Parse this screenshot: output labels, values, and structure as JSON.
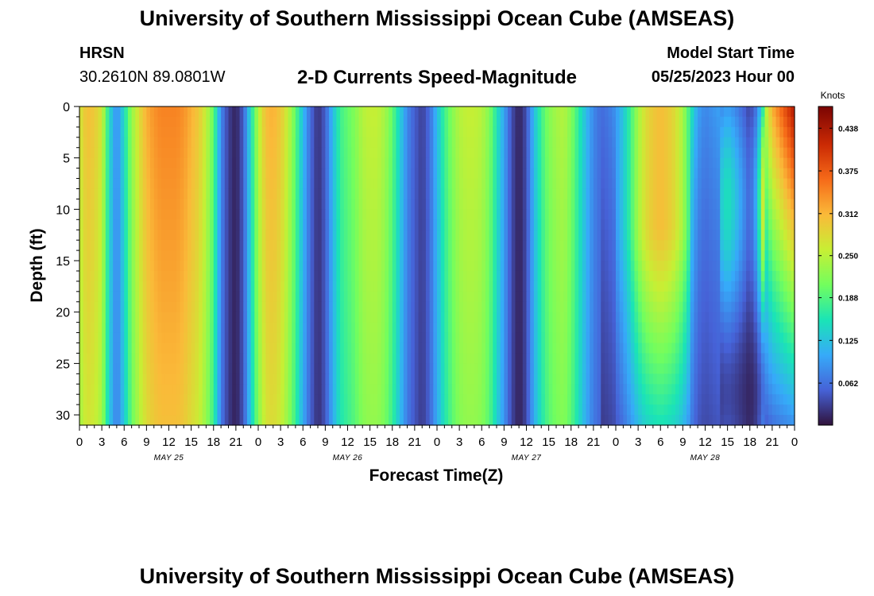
{
  "header": {
    "title": "University of Southern Mississippi Ocean Cube (AMSEAS)",
    "station": "HRSN",
    "coordinates": "30.2610N  89.0801W",
    "plot_title": "2-D Currents Speed-Magnitude",
    "model_start_label": "Model Start Time",
    "model_start_value": "05/25/2023 Hour 00"
  },
  "footer": {
    "title": "University of Southern Mississippi Ocean Cube (AMSEAS)"
  },
  "chart_data": {
    "type": "heatmap",
    "title": "2-D Currents Speed-Magnitude",
    "xlabel": "Forecast Time(Z)",
    "ylabel": "Depth (ft)",
    "x_tick_labels": [
      "0",
      "3",
      "6",
      "9",
      "12",
      "15",
      "18",
      "21",
      "0",
      "3",
      "6",
      "9",
      "12",
      "15",
      "18",
      "21",
      "0",
      "3",
      "6",
      "9",
      "12",
      "15",
      "18",
      "21",
      "0",
      "3",
      "6",
      "9",
      "12",
      "15",
      "18",
      "21",
      "0"
    ],
    "x_hours_range": [
      0,
      96
    ],
    "day_labels": [
      {
        "label": "MAY 25",
        "hour": 12
      },
      {
        "label": "MAY 26",
        "hour": 36
      },
      {
        "label": "MAY 27",
        "hour": 60
      },
      {
        "label": "MAY 28",
        "hour": 84
      }
    ],
    "y_ticks": [
      0,
      5,
      10,
      15,
      20,
      25,
      30
    ],
    "ylim": [
      0,
      31
    ],
    "colorbar": {
      "label": "Knots",
      "range": [
        0,
        0.47
      ],
      "ticks": [
        "0.438",
        "0.375",
        "0.312",
        "0.250",
        "0.188",
        "0.125",
        "0.062"
      ],
      "tick_values": [
        0.438,
        0.375,
        0.312,
        0.25,
        0.188,
        0.125,
        0.062
      ],
      "colors": [
        "#30123b",
        "#4662d7",
        "#36aaf9",
        "#1ae4b6",
        "#72fe5e",
        "#c7ef34",
        "#faba39",
        "#f66b19",
        "#cb2a04",
        "#7a0403"
      ]
    },
    "time_profile_hours": [
      0,
      1,
      2,
      3,
      4,
      5,
      6,
      7,
      8,
      9,
      10,
      11,
      12,
      13,
      14,
      15,
      16,
      17,
      18,
      19,
      20,
      21,
      22,
      23,
      24,
      25,
      26,
      27,
      28,
      29,
      30,
      31,
      32,
      33,
      34,
      35,
      36,
      37,
      38,
      39,
      40,
      41,
      42,
      43,
      44,
      45,
      46,
      47,
      48,
      49,
      50,
      51,
      52,
      53,
      54,
      55,
      56,
      57,
      58,
      59,
      60,
      61,
      62,
      63,
      64,
      65,
      66,
      67,
      68,
      69,
      70,
      71,
      72,
      73,
      74,
      75,
      76,
      77,
      78,
      79,
      80,
      81,
      82,
      83,
      84,
      85,
      86,
      87,
      88,
      89,
      90,
      91,
      92,
      93,
      94,
      95,
      96
    ],
    "surface_speed_knots": [
      0.27,
      0.31,
      0.3,
      0.27,
      0.15,
      0.08,
      0.15,
      0.23,
      0.28,
      0.32,
      0.34,
      0.35,
      0.35,
      0.35,
      0.34,
      0.32,
      0.3,
      0.26,
      0.2,
      0.08,
      0.03,
      0.01,
      0.05,
      0.15,
      0.25,
      0.31,
      0.32,
      0.3,
      0.26,
      0.2,
      0.12,
      0.06,
      0.02,
      0.05,
      0.12,
      0.18,
      0.2,
      0.22,
      0.25,
      0.26,
      0.26,
      0.24,
      0.2,
      0.14,
      0.08,
      0.05,
      0.03,
      0.06,
      0.12,
      0.18,
      0.22,
      0.25,
      0.26,
      0.26,
      0.25,
      0.22,
      0.16,
      0.1,
      0.04,
      0.01,
      0.04,
      0.12,
      0.18,
      0.22,
      0.24,
      0.25,
      0.22,
      0.17,
      0.12,
      0.08,
      0.06,
      0.07,
      0.09,
      0.13,
      0.18,
      0.24,
      0.28,
      0.3,
      0.31,
      0.3,
      0.28,
      0.24,
      0.17,
      0.1,
      0.08,
      0.09,
      0.1,
      0.12,
      0.1,
      0.07,
      0.04,
      0.09,
      0.24,
      0.32,
      0.36,
      0.4,
      0.44
    ]
  }
}
